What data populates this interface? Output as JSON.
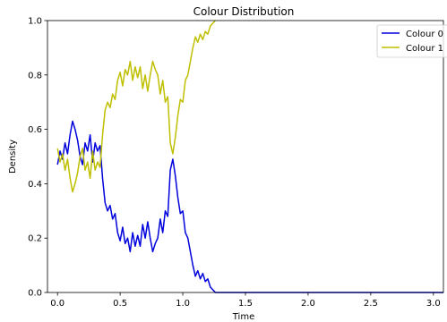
{
  "chart_data": {
    "type": "line",
    "title": "Colour Distribution",
    "xlabel": "Time",
    "ylabel": "Density",
    "xlim": [
      -0.08,
      3.08
    ],
    "ylim": [
      0.0,
      1.0
    ],
    "xticks": [
      0.0,
      0.5,
      1.0,
      1.5,
      2.0,
      2.5,
      3.0
    ],
    "xtick_labels": [
      "0.0",
      "0.5",
      "1.0",
      "1.5",
      "2.0",
      "2.5",
      "3.0"
    ],
    "yticks": [
      0.0,
      0.2,
      0.4,
      0.6,
      0.8,
      1.0
    ],
    "ytick_labels": [
      "0.0",
      "0.2",
      "0.4",
      "0.6",
      "0.8",
      "1.0"
    ],
    "grid": false,
    "legend_position": "top-right",
    "series": [
      {
        "name": "Colour 0",
        "color": "#0000dd",
        "x": [
          0.0,
          0.02,
          0.04,
          0.06,
          0.08,
          0.1,
          0.12,
          0.14,
          0.16,
          0.18,
          0.2,
          0.22,
          0.24,
          0.26,
          0.28,
          0.3,
          0.32,
          0.34,
          0.36,
          0.38,
          0.4,
          0.42,
          0.44,
          0.46,
          0.48,
          0.5,
          0.52,
          0.54,
          0.56,
          0.58,
          0.6,
          0.62,
          0.64,
          0.66,
          0.68,
          0.7,
          0.72,
          0.74,
          0.76,
          0.78,
          0.8,
          0.82,
          0.84,
          0.86,
          0.88,
          0.9,
          0.92,
          0.94,
          0.96,
          0.98,
          1.0,
          1.02,
          1.04,
          1.06,
          1.08,
          1.1,
          1.12,
          1.14,
          1.16,
          1.18,
          1.2,
          1.22,
          1.24,
          1.26,
          1.3,
          1.5,
          2.0,
          2.5,
          3.0,
          3.08
        ],
        "values": [
          0.47,
          0.52,
          0.49,
          0.55,
          0.51,
          0.58,
          0.63,
          0.6,
          0.56,
          0.5,
          0.47,
          0.55,
          0.52,
          0.58,
          0.48,
          0.55,
          0.52,
          0.54,
          0.42,
          0.33,
          0.3,
          0.32,
          0.27,
          0.29,
          0.22,
          0.19,
          0.24,
          0.18,
          0.2,
          0.15,
          0.22,
          0.17,
          0.21,
          0.17,
          0.25,
          0.2,
          0.26,
          0.2,
          0.15,
          0.18,
          0.2,
          0.27,
          0.22,
          0.3,
          0.28,
          0.45,
          0.49,
          0.43,
          0.35,
          0.29,
          0.3,
          0.22,
          0.2,
          0.15,
          0.1,
          0.06,
          0.08,
          0.05,
          0.07,
          0.04,
          0.05,
          0.02,
          0.01,
          0.0,
          0.0,
          0.0,
          0.0,
          0.0,
          0.0,
          0.0
        ]
      },
      {
        "name": "Colour 1",
        "color": "#bfbf00",
        "x": [
          0.0,
          0.02,
          0.04,
          0.06,
          0.08,
          0.1,
          0.12,
          0.14,
          0.16,
          0.18,
          0.2,
          0.22,
          0.24,
          0.26,
          0.28,
          0.3,
          0.32,
          0.34,
          0.36,
          0.38,
          0.4,
          0.42,
          0.44,
          0.46,
          0.48,
          0.5,
          0.52,
          0.54,
          0.56,
          0.58,
          0.6,
          0.62,
          0.64,
          0.66,
          0.68,
          0.7,
          0.72,
          0.74,
          0.76,
          0.78,
          0.8,
          0.82,
          0.84,
          0.86,
          0.88,
          0.9,
          0.92,
          0.94,
          0.96,
          0.98,
          1.0,
          1.02,
          1.04,
          1.06,
          1.08,
          1.1,
          1.12,
          1.14,
          1.16,
          1.18,
          1.2,
          1.22,
          1.24,
          1.26
        ],
        "values": [
          0.53,
          0.48,
          0.51,
          0.45,
          0.49,
          0.42,
          0.37,
          0.4,
          0.44,
          0.5,
          0.53,
          0.45,
          0.48,
          0.42,
          0.52,
          0.45,
          0.48,
          0.46,
          0.58,
          0.67,
          0.7,
          0.68,
          0.73,
          0.71,
          0.78,
          0.81,
          0.76,
          0.82,
          0.8,
          0.85,
          0.78,
          0.83,
          0.79,
          0.83,
          0.75,
          0.8,
          0.74,
          0.8,
          0.85,
          0.82,
          0.8,
          0.73,
          0.78,
          0.7,
          0.72,
          0.55,
          0.51,
          0.57,
          0.65,
          0.71,
          0.7,
          0.78,
          0.8,
          0.85,
          0.9,
          0.94,
          0.92,
          0.95,
          0.93,
          0.96,
          0.95,
          0.98,
          0.99,
          1.0
        ]
      }
    ]
  }
}
